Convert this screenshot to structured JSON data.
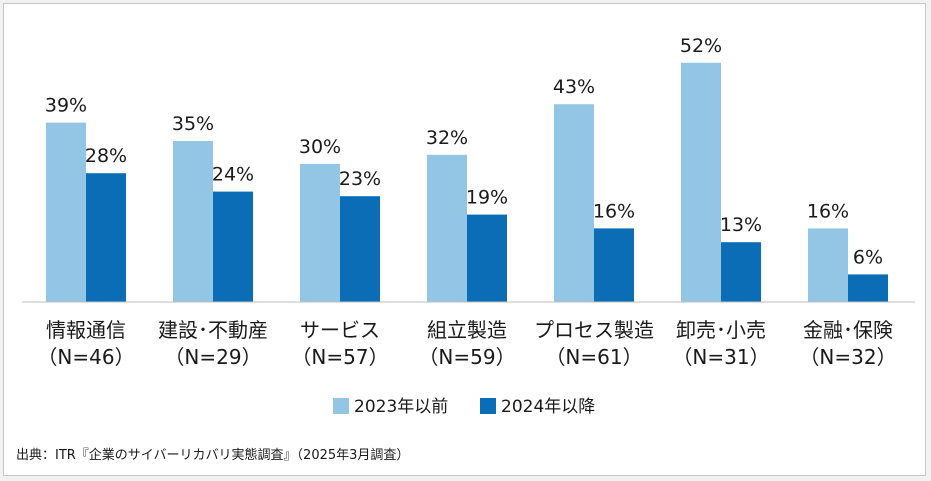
{
  "chart_data": {
    "type": "bar",
    "categories": [
      {
        "name": "情報通信",
        "n": "（N=46）"
      },
      {
        "name": "建設･不動産",
        "n": "（N=29）"
      },
      {
        "name": "サービス",
        "n": "（N=57）"
      },
      {
        "name": "組立製造",
        "n": "（N=59）"
      },
      {
        "name": "プロセス製造",
        "n": "（N=61）"
      },
      {
        "name": "卸売･小売",
        "n": "（N=31）"
      },
      {
        "name": "金融･保険",
        "n": "（N=32）"
      }
    ],
    "series": [
      {
        "name": "2023年以前",
        "color": "#92c6e4",
        "values": [
          39,
          35,
          30,
          32,
          43,
          52,
          16
        ]
      },
      {
        "name": "2024年以降",
        "color": "#0b6db5",
        "values": [
          28,
          24,
          23,
          19,
          16,
          13,
          6
        ]
      }
    ],
    "value_suffix": "%",
    "ylim": [
      0,
      60
    ],
    "legend_position": "bottom-center",
    "grid": false
  },
  "source": "出典：ITR『企業のサイバーリカバリ実態調査』（2025年3月調査）"
}
